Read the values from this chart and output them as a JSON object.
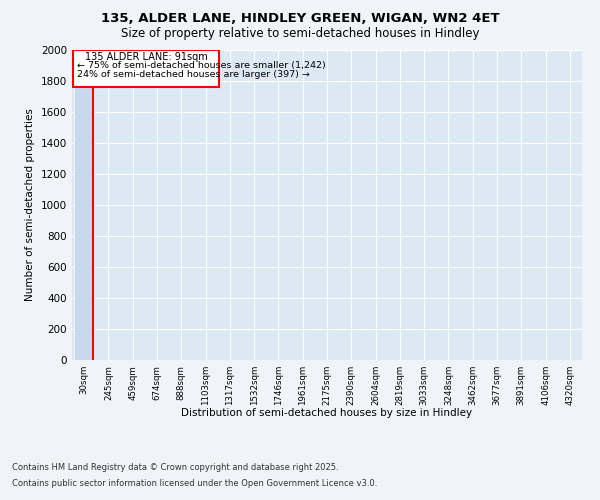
{
  "title1": "135, ALDER LANE, HINDLEY GREEN, WIGAN, WN2 4ET",
  "title2": "Size of property relative to semi-detached houses in Hindley",
  "xlabel": "Distribution of semi-detached houses by size in Hindley",
  "ylabel": "Number of semi-detached properties",
  "bins": [
    "30sqm",
    "245sqm",
    "459sqm",
    "674sqm",
    "888sqm",
    "1103sqm",
    "1317sqm",
    "1532sqm",
    "1746sqm",
    "1961sqm",
    "2175sqm",
    "2390sqm",
    "2604sqm",
    "2819sqm",
    "3033sqm",
    "3248sqm",
    "3462sqm",
    "3677sqm",
    "3891sqm",
    "4106sqm",
    "4320sqm"
  ],
  "values": [
    1870,
    0,
    0,
    0,
    0,
    0,
    0,
    0,
    0,
    0,
    0,
    0,
    0,
    0,
    0,
    0,
    0,
    0,
    0,
    0,
    0
  ],
  "bar_color": "#c8d9ee",
  "ylim": [
    0,
    2000
  ],
  "yticks": [
    0,
    200,
    400,
    600,
    800,
    1000,
    1200,
    1400,
    1600,
    1800,
    2000
  ],
  "subject_bin_index": 0,
  "red_line_x": 0.38,
  "annotation_line1": "135 ALDER LANE: 91sqm",
  "annotation_line2": "← 75% of semi-detached houses are smaller (1,242)",
  "annotation_line3": "24% of semi-detached houses are larger (397) →",
  "footer1": "Contains HM Land Registry data © Crown copyright and database right 2025.",
  "footer2": "Contains public sector information licensed under the Open Government Licence v3.0.",
  "bg_color": "#f0f4f8",
  "plot_bg_color": "#dce9f5"
}
